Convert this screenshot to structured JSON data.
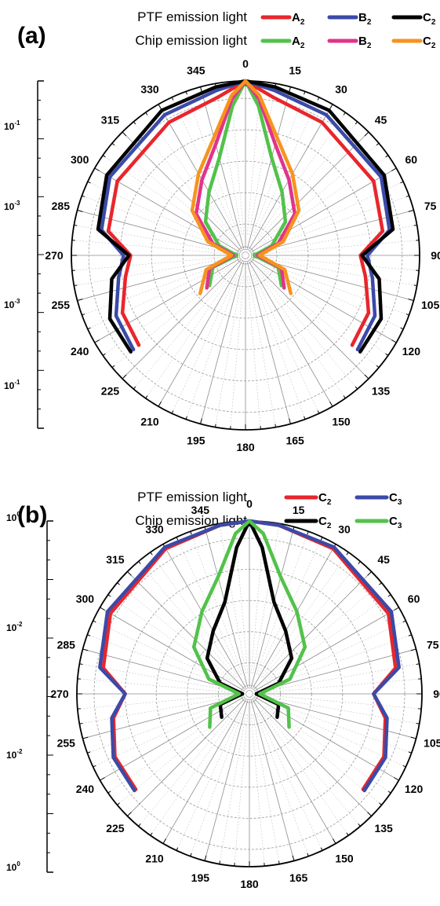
{
  "chart_data": [
    {
      "type": "polar-line",
      "panel_label": "(a)",
      "legend": {
        "groups": [
          {
            "label": "PTF emission light",
            "entries": [
              {
                "key": "A",
                "sub": "2",
                "color": "#e8262c"
              },
              {
                "key": "B",
                "sub": "2",
                "color": "#3b4aa8"
              },
              {
                "key": "C",
                "sub": "2",
                "color": "#000000"
              }
            ]
          },
          {
            "label": "Chip emission light",
            "entries": [
              {
                "key": "A",
                "sub": "2",
                "color": "#52c24a"
              },
              {
                "key": "B",
                "sub": "2",
                "color": "#e0348c"
              },
              {
                "key": "C",
                "sub": "2",
                "color": "#f7931e"
              }
            ]
          }
        ]
      },
      "angular_ticks": [
        "0",
        "15",
        "30",
        "45",
        "60",
        "75",
        "90",
        "105",
        "120",
        "135",
        "150",
        "165",
        "180",
        "195",
        "210",
        "225",
        "240",
        "255",
        "270",
        "285",
        "300",
        "315",
        "330",
        "345"
      ],
      "radial_scale": {
        "log": true,
        "labels": [
          {
            "base": "10",
            "exp": "-1"
          },
          {
            "base": "10",
            "exp": "-3"
          },
          {
            "base": "10",
            "exp": "-3"
          },
          {
            "base": "10",
            "exp": "-1"
          }
        ]
      },
      "series": [
        {
          "group": "PTF emission light",
          "key": "A2",
          "color": "#e8262c",
          "points": [
            [
              0,
              1.0
            ],
            [
              10,
              0.92
            ],
            [
              30,
              0.88
            ],
            [
              60,
              0.85
            ],
            [
              80,
              0.8
            ],
            [
              90,
              0.66
            ],
            [
              100,
              0.7
            ],
            [
              115,
              0.78
            ],
            [
              130,
              0.8
            ]
          ]
        },
        {
          "group": "PTF emission light",
          "key": "B2",
          "color": "#3b4aa8",
          "points": [
            [
              0,
              1.0
            ],
            [
              10,
              0.96
            ],
            [
              30,
              0.93
            ],
            [
              60,
              0.9
            ],
            [
              80,
              0.84
            ],
            [
              90,
              0.7
            ],
            [
              100,
              0.74
            ],
            [
              115,
              0.82
            ],
            [
              130,
              0.84
            ]
          ]
        },
        {
          "group": "PTF emission light",
          "key": "C2",
          "color": "#000000",
          "points": [
            [
              0,
              1.0
            ],
            [
              10,
              0.98
            ],
            [
              30,
              0.96
            ],
            [
              60,
              0.92
            ],
            [
              80,
              0.86
            ],
            [
              90,
              0.67
            ],
            [
              100,
              0.78
            ],
            [
              115,
              0.86
            ],
            [
              130,
              0.86
            ]
          ]
        },
        {
          "group": "Chip emission light",
          "key": "A2",
          "color": "#52c24a",
          "points": [
            [
              0,
              1.0
            ],
            [
              5,
              0.86
            ],
            [
              15,
              0.58
            ],
            [
              30,
              0.42
            ],
            [
              50,
              0.3
            ],
            [
              70,
              0.16
            ],
            [
              90,
              0.05
            ],
            [
              110,
              0.2
            ],
            [
              130,
              0.27
            ]
          ]
        },
        {
          "group": "Chip emission light",
          "key": "B2",
          "color": "#e0348c",
          "points": [
            [
              0,
              1.0
            ],
            [
              5,
              0.9
            ],
            [
              15,
              0.66
            ],
            [
              30,
              0.5
            ],
            [
              50,
              0.37
            ],
            [
              70,
              0.2
            ],
            [
              90,
              0.07
            ],
            [
              110,
              0.22
            ],
            [
              130,
              0.29
            ]
          ]
        },
        {
          "group": "Chip emission light",
          "key": "C2",
          "color": "#f7931e",
          "points": [
            [
              0,
              1.0
            ],
            [
              5,
              0.92
            ],
            [
              15,
              0.7
            ],
            [
              30,
              0.54
            ],
            [
              50,
              0.4
            ],
            [
              70,
              0.23
            ],
            [
              90,
              0.08
            ],
            [
              110,
              0.24
            ],
            [
              130,
              0.34
            ]
          ]
        }
      ]
    },
    {
      "type": "polar-line",
      "panel_label": "(b)",
      "legend": {
        "groups": [
          {
            "label": "PTF emission light",
            "entries": [
              {
                "key": "C",
                "sub": "2",
                "color": "#e8262c"
              },
              {
                "key": "C",
                "sub": "3",
                "color": "#3b4aa8"
              }
            ]
          },
          {
            "label": "Chip emission light",
            "entries": [
              {
                "key": "C",
                "sub": "2",
                "color": "#000000"
              },
              {
                "key": "C",
                "sub": "3",
                "color": "#52c24a"
              }
            ]
          }
        ]
      },
      "angular_ticks": [
        "0",
        "15",
        "30",
        "45",
        "60",
        "75",
        "90",
        "105",
        "120",
        "135",
        "150",
        "165",
        "180",
        "195",
        "210",
        "225",
        "240",
        "255",
        "270",
        "285",
        "300",
        "315",
        "330",
        "345"
      ],
      "radial_scale": {
        "log": true,
        "labels": [
          {
            "base": "10",
            "exp": "0"
          },
          {
            "base": "10",
            "exp": "-2"
          },
          {
            "base": "10",
            "exp": "-2"
          },
          {
            "base": "10",
            "exp": "0"
          }
        ]
      },
      "series": [
        {
          "group": "PTF emission light",
          "key": "C2",
          "color": "#e8262c",
          "points": [
            [
              0,
              1.0
            ],
            [
              10,
              0.99
            ],
            [
              30,
              0.97
            ],
            [
              60,
              0.93
            ],
            [
              80,
              0.86
            ],
            [
              90,
              0.72
            ],
            [
              100,
              0.8
            ],
            [
              115,
              0.86
            ],
            [
              130,
              0.86
            ]
          ]
        },
        {
          "group": "PTF emission light",
          "key": "C3",
          "color": "#3b4aa8",
          "points": [
            [
              0,
              1.0
            ],
            [
              10,
              0.99
            ],
            [
              30,
              0.98
            ],
            [
              60,
              0.95
            ],
            [
              80,
              0.88
            ],
            [
              90,
              0.72
            ],
            [
              100,
              0.81
            ],
            [
              115,
              0.87
            ],
            [
              130,
              0.87
            ]
          ]
        },
        {
          "group": "Chip emission light",
          "key": "C2",
          "color": "#000000",
          "points": [
            [
              0,
              1.0
            ],
            [
              5,
              0.85
            ],
            [
              15,
              0.55
            ],
            [
              30,
              0.42
            ],
            [
              50,
              0.32
            ],
            [
              70,
              0.18
            ],
            [
              90,
              0.04
            ],
            [
              110,
              0.18
            ],
            [
              130,
              0.21
            ]
          ]
        },
        {
          "group": "Chip emission light",
          "key": "C3",
          "color": "#52c24a",
          "points": [
            [
              0,
              1.0
            ],
            [
              5,
              0.93
            ],
            [
              15,
              0.7
            ],
            [
              30,
              0.55
            ],
            [
              50,
              0.42
            ],
            [
              70,
              0.25
            ],
            [
              90,
              0.06
            ],
            [
              110,
              0.24
            ],
            [
              130,
              0.3
            ]
          ]
        }
      ]
    }
  ]
}
